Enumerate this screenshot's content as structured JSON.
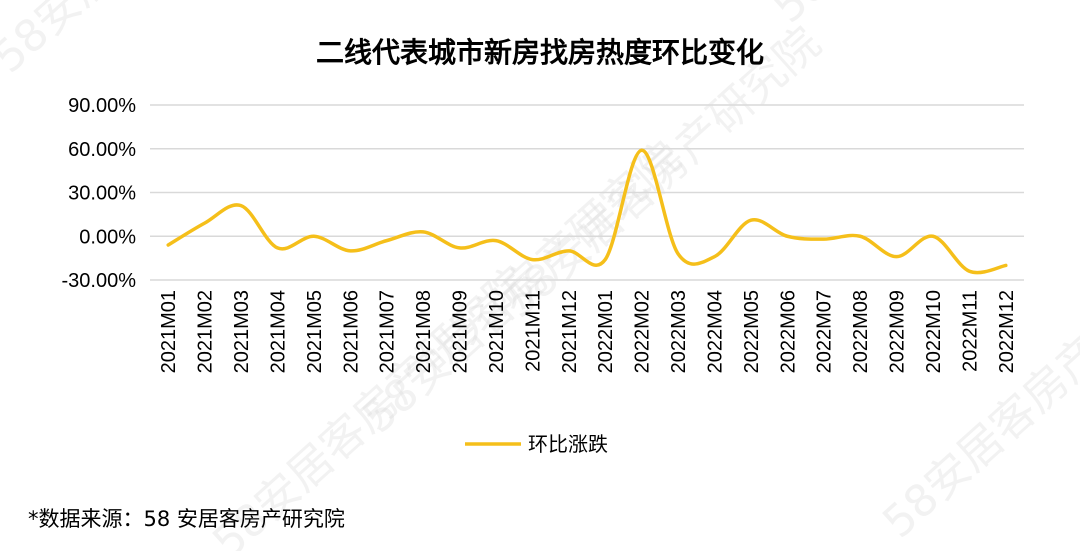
{
  "chart_data": {
    "type": "line",
    "title": "二线代表城市新房找房热度环比变化",
    "x": [
      "2021M01",
      "2021M02",
      "2021M03",
      "2021M04",
      "2021M05",
      "2021M06",
      "2021M07",
      "2021M08",
      "2021M09",
      "2021M10",
      "2021M11",
      "2021M12",
      "2022M01",
      "2022M02",
      "2022M03",
      "2022M04",
      "2022M05",
      "2022M06",
      "2022M07",
      "2022M08",
      "2022M09",
      "2022M10",
      "2022M11",
      "2022M12"
    ],
    "series": [
      {
        "name": "环比涨跌",
        "values": [
          -6,
          9,
          21,
          -8,
          0,
          -10,
          -3,
          3,
          -8,
          -3,
          -16,
          -10,
          -16,
          59,
          -12,
          -14,
          11,
          0,
          -2,
          0,
          -14,
          0,
          -24,
          -20
        ]
      }
    ],
    "yticks": [
      "90.00%",
      "60.00%",
      "30.00%",
      "0.00%",
      "-30.00%"
    ],
    "ylim": [
      -30,
      90
    ],
    "grid": true,
    "legend": "bottom",
    "line_color": "#F5BF1A",
    "source_note": "*数据来源：58 安居客房产研究院",
    "watermark": "58安居客房产研究院"
  }
}
